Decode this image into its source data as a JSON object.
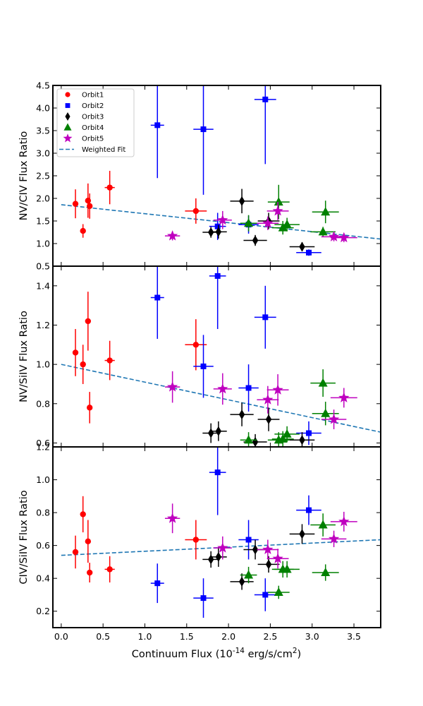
{
  "chart_data": {
    "type": "scatter",
    "xlabel": "Continuum Flux (10",
    "xlabel_exp": "-14",
    "xlabel_units": " erg/s/cm",
    "xlabel_units_exp": "2",
    "xlabel_close": ")",
    "xlim": [
      -0.1,
      3.82
    ],
    "xticks": [
      0.0,
      0.5,
      1.0,
      1.5,
      2.0,
      2.5,
      3.0,
      3.5
    ],
    "xtick_labels": [
      "0.0",
      "0.5",
      "1.0",
      "1.5",
      "2.0",
      "2.5",
      "3.0",
      "3.5"
    ],
    "legend": {
      "location": "top-left",
      "entries": [
        {
          "label": "Orbit1",
          "marker": "circle",
          "color": "#ff0000"
        },
        {
          "label": "Orbit2",
          "marker": "square",
          "color": "#0000ff"
        },
        {
          "label": "Orbit3",
          "marker": "diamond",
          "color": "#000000"
        },
        {
          "label": "Orbit4",
          "marker": "triangle",
          "color": "#008000"
        },
        {
          "label": "Orbit5",
          "marker": "star",
          "color": "#bf00bf"
        },
        {
          "label": "Weighted Fit",
          "marker": "dashed-line",
          "color": "#1f77b4"
        }
      ]
    },
    "colors": {
      "Orbit1": "#ff0000",
      "Orbit2": "#0000ff",
      "Orbit3": "#000000",
      "Orbit4": "#008000",
      "Orbit5": "#bf00bf",
      "fit": "#1f77b4"
    },
    "panels": [
      {
        "ylabel": "NV/CIV Flux Ratio",
        "ylim": [
          0.5,
          4.5
        ],
        "yticks": [
          0.5,
          1.0,
          1.5,
          2.0,
          2.5,
          3.0,
          3.5,
          4.0,
          4.5
        ],
        "ytick_labels": [
          "0.5",
          "1.0",
          "1.5",
          "2.0",
          "2.5",
          "3.0",
          "3.5",
          "4.0",
          "4.5"
        ],
        "fit": {
          "x": [
            0.0,
            3.82
          ],
          "y": [
            1.86,
            1.1
          ]
        },
        "series": [
          {
            "name": "Orbit1",
            "points": [
              {
                "x": 0.17,
                "y": 1.88,
                "xerr": 0.0,
                "yerr": 0.32
              },
              {
                "x": 0.26,
                "y": 1.28,
                "xerr": 0.03,
                "yerr": 0.15
              },
              {
                "x": 0.32,
                "y": 1.95,
                "xerr": 0.03,
                "yerr": 0.38
              },
              {
                "x": 0.34,
                "y": 1.83,
                "xerr": 0.03,
                "yerr": 0.28
              },
              {
                "x": 0.58,
                "y": 2.24,
                "xerr": 0.06,
                "yerr": 0.37
              },
              {
                "x": 1.61,
                "y": 1.72,
                "xerr": 0.13,
                "yerr": 0.28
              }
            ]
          },
          {
            "name": "Orbit2",
            "points": [
              {
                "x": 1.15,
                "y": 3.62,
                "xerr": 0.08,
                "yerr": 1.17
              },
              {
                "x": 1.7,
                "y": 3.53,
                "xerr": 0.12,
                "yerr": 1.45
              },
              {
                "x": 1.87,
                "y": 1.38,
                "xerr": 0.1,
                "yerr": 0.3
              },
              {
                "x": 2.24,
                "y": 1.42,
                "xerr": 0.12,
                "yerr": 0.2
              },
              {
                "x": 2.44,
                "y": 4.19,
                "xerr": 0.13,
                "yerr": 1.43
              },
              {
                "x": 2.96,
                "y": 0.8,
                "xerr": 0.15,
                "yerr": 0.07
              }
            ]
          },
          {
            "name": "Orbit3",
            "points": [
              {
                "x": 1.79,
                "y": 1.25,
                "xerr": 0.1,
                "yerr": 0.12
              },
              {
                "x": 1.88,
                "y": 1.26,
                "xerr": 0.1,
                "yerr": 0.15
              },
              {
                "x": 2.16,
                "y": 1.94,
                "xerr": 0.14,
                "yerr": 0.27
              },
              {
                "x": 2.32,
                "y": 1.07,
                "xerr": 0.14,
                "yerr": 0.12
              },
              {
                "x": 2.48,
                "y": 1.5,
                "xerr": 0.13,
                "yerr": 0.18
              },
              {
                "x": 2.88,
                "y": 0.93,
                "xerr": 0.15,
                "yerr": 0.1
              }
            ]
          },
          {
            "name": "Orbit4",
            "points": [
              {
                "x": 2.24,
                "y": 1.45,
                "xerr": 0.1,
                "yerr": 0.18
              },
              {
                "x": 2.6,
                "y": 1.92,
                "xerr": 0.13,
                "yerr": 0.38
              },
              {
                "x": 2.65,
                "y": 1.35,
                "xerr": 0.13,
                "yerr": 0.15
              },
              {
                "x": 2.7,
                "y": 1.42,
                "xerr": 0.15,
                "yerr": 0.15
              },
              {
                "x": 3.13,
                "y": 1.26,
                "xerr": 0.15,
                "yerr": 0.11
              },
              {
                "x": 3.16,
                "y": 1.7,
                "xerr": 0.16,
                "yerr": 0.25
              }
            ]
          },
          {
            "name": "Orbit5",
            "points": [
              {
                "x": 1.33,
                "y": 1.17,
                "xerr": 0.09,
                "yerr": 0.1
              },
              {
                "x": 1.93,
                "y": 1.52,
                "xerr": 0.11,
                "yerr": 0.2
              },
              {
                "x": 2.47,
                "y": 1.45,
                "xerr": 0.13,
                "yerr": 0.15
              },
              {
                "x": 2.59,
                "y": 1.72,
                "xerr": 0.13,
                "yerr": 0.2
              },
              {
                "x": 3.26,
                "y": 1.15,
                "xerr": 0.15,
                "yerr": 0.1
              },
              {
                "x": 3.38,
                "y": 1.13,
                "xerr": 0.16,
                "yerr": 0.1
              }
            ]
          }
        ]
      },
      {
        "ylabel": "NV/SiIV Flux Ratio",
        "ylim": [
          0.58,
          1.5
        ],
        "yticks": [
          0.6,
          0.8,
          1.0,
          1.2,
          1.4
        ],
        "ytick_labels": [
          "0.6",
          "0.8",
          "1.0",
          "1.2",
          "1.4"
        ],
        "fit": {
          "x": [
            0.0,
            3.82
          ],
          "y": [
            1.0,
            0.655
          ]
        },
        "series": [
          {
            "name": "Orbit1",
            "points": [
              {
                "x": 0.17,
                "y": 1.06,
                "xerr": 0.0,
                "yerr": 0.12
              },
              {
                "x": 0.26,
                "y": 1.0,
                "xerr": 0.03,
                "yerr": 0.1
              },
              {
                "x": 0.32,
                "y": 1.22,
                "xerr": 0.03,
                "yerr": 0.15
              },
              {
                "x": 0.34,
                "y": 0.78,
                "xerr": 0.03,
                "yerr": 0.08
              },
              {
                "x": 0.58,
                "y": 1.02,
                "xerr": 0.06,
                "yerr": 0.1
              },
              {
                "x": 1.61,
                "y": 1.1,
                "xerr": 0.13,
                "yerr": 0.13
              }
            ]
          },
          {
            "name": "Orbit2",
            "points": [
              {
                "x": 1.15,
                "y": 1.34,
                "xerr": 0.08,
                "yerr": 0.21
              },
              {
                "x": 1.7,
                "y": 0.99,
                "xerr": 0.12,
                "yerr": 0.16
              },
              {
                "x": 1.87,
                "y": 1.45,
                "xerr": 0.1,
                "yerr": 0.27
              },
              {
                "x": 2.24,
                "y": 0.88,
                "xerr": 0.12,
                "yerr": 0.12
              },
              {
                "x": 2.44,
                "y": 1.24,
                "xerr": 0.13,
                "yerr": 0.16
              },
              {
                "x": 2.96,
                "y": 0.65,
                "xerr": 0.15,
                "yerr": 0.06
              }
            ]
          },
          {
            "name": "Orbit3",
            "points": [
              {
                "x": 1.79,
                "y": 0.65,
                "xerr": 0.1,
                "yerr": 0.05
              },
              {
                "x": 1.88,
                "y": 0.66,
                "xerr": 0.1,
                "yerr": 0.05
              },
              {
                "x": 2.16,
                "y": 0.745,
                "xerr": 0.14,
                "yerr": 0.06
              },
              {
                "x": 2.32,
                "y": 0.605,
                "xerr": 0.14,
                "yerr": 0.04
              },
              {
                "x": 2.48,
                "y": 0.72,
                "xerr": 0.13,
                "yerr": 0.06
              },
              {
                "x": 2.88,
                "y": 0.615,
                "xerr": 0.15,
                "yerr": 0.04
              }
            ]
          },
          {
            "name": "Orbit4",
            "points": [
              {
                "x": 2.24,
                "y": 0.615,
                "xerr": 0.1,
                "yerr": 0.04
              },
              {
                "x": 2.6,
                "y": 0.615,
                "xerr": 0.13,
                "yerr": 0.04
              },
              {
                "x": 2.65,
                "y": 0.62,
                "xerr": 0.13,
                "yerr": 0.04
              },
              {
                "x": 2.7,
                "y": 0.645,
                "xerr": 0.15,
                "yerr": 0.04
              },
              {
                "x": 3.13,
                "y": 0.905,
                "xerr": 0.15,
                "yerr": 0.07
              },
              {
                "x": 3.16,
                "y": 0.75,
                "xerr": 0.16,
                "yerr": 0.06
              }
            ]
          },
          {
            "name": "Orbit5",
            "points": [
              {
                "x": 1.33,
                "y": 0.885,
                "xerr": 0.09,
                "yerr": 0.08
              },
              {
                "x": 1.93,
                "y": 0.875,
                "xerr": 0.11,
                "yerr": 0.08
              },
              {
                "x": 2.47,
                "y": 0.82,
                "xerr": 0.13,
                "yerr": 0.07
              },
              {
                "x": 2.59,
                "y": 0.87,
                "xerr": 0.13,
                "yerr": 0.08
              },
              {
                "x": 3.26,
                "y": 0.72,
                "xerr": 0.15,
                "yerr": 0.05
              },
              {
                "x": 3.38,
                "y": 0.83,
                "xerr": 0.16,
                "yerr": 0.05
              }
            ]
          }
        ]
      },
      {
        "ylabel": "CIV/SiIV Flux Ratio",
        "ylim": [
          0.1,
          1.2
        ],
        "yticks": [
          0.2,
          0.4,
          0.6,
          0.8,
          1.0,
          1.2
        ],
        "ytick_labels": [
          "0.2",
          "0.4",
          "0.6",
          "0.8",
          "1.0",
          "1.2"
        ],
        "fit": {
          "x": [
            0.0,
            3.82
          ],
          "y": [
            0.54,
            0.635
          ]
        },
        "series": [
          {
            "name": "Orbit1",
            "points": [
              {
                "x": 0.17,
                "y": 0.56,
                "xerr": 0.0,
                "yerr": 0.1
              },
              {
                "x": 0.26,
                "y": 0.79,
                "xerr": 0.03,
                "yerr": 0.11
              },
              {
                "x": 0.32,
                "y": 0.625,
                "xerr": 0.03,
                "yerr": 0.13
              },
              {
                "x": 0.34,
                "y": 0.435,
                "xerr": 0.03,
                "yerr": 0.06
              },
              {
                "x": 0.58,
                "y": 0.455,
                "xerr": 0.06,
                "yerr": 0.08
              },
              {
                "x": 1.61,
                "y": 0.635,
                "xerr": 0.13,
                "yerr": 0.12
              }
            ]
          },
          {
            "name": "Orbit2",
            "points": [
              {
                "x": 1.15,
                "y": 0.37,
                "xerr": 0.08,
                "yerr": 0.12
              },
              {
                "x": 1.7,
                "y": 0.28,
                "xerr": 0.12,
                "yerr": 0.12
              },
              {
                "x": 1.87,
                "y": 1.045,
                "xerr": 0.1,
                "yerr": 0.26
              },
              {
                "x": 2.24,
                "y": 0.635,
                "xerr": 0.12,
                "yerr": 0.12
              },
              {
                "x": 2.44,
                "y": 0.3,
                "xerr": 0.13,
                "yerr": 0.1
              },
              {
                "x": 2.96,
                "y": 0.815,
                "xerr": 0.15,
                "yerr": 0.09
              }
            ]
          },
          {
            "name": "Orbit3",
            "points": [
              {
                "x": 1.79,
                "y": 0.515,
                "xerr": 0.1,
                "yerr": 0.05
              },
              {
                "x": 1.88,
                "y": 0.53,
                "xerr": 0.1,
                "yerr": 0.06
              },
              {
                "x": 2.16,
                "y": 0.38,
                "xerr": 0.14,
                "yerr": 0.05
              },
              {
                "x": 2.32,
                "y": 0.575,
                "xerr": 0.14,
                "yerr": 0.06
              },
              {
                "x": 2.48,
                "y": 0.485,
                "xerr": 0.13,
                "yerr": 0.05
              },
              {
                "x": 2.88,
                "y": 0.67,
                "xerr": 0.15,
                "yerr": 0.06
              }
            ]
          },
          {
            "name": "Orbit4",
            "points": [
              {
                "x": 2.24,
                "y": 0.42,
                "xerr": 0.1,
                "yerr": 0.05
              },
              {
                "x": 2.6,
                "y": 0.315,
                "xerr": 0.13,
                "yerr": 0.04
              },
              {
                "x": 2.65,
                "y": 0.455,
                "xerr": 0.13,
                "yerr": 0.05
              },
              {
                "x": 2.7,
                "y": 0.455,
                "xerr": 0.15,
                "yerr": 0.05
              },
              {
                "x": 3.13,
                "y": 0.725,
                "xerr": 0.15,
                "yerr": 0.07
              },
              {
                "x": 3.16,
                "y": 0.435,
                "xerr": 0.16,
                "yerr": 0.05
              }
            ]
          },
          {
            "name": "Orbit5",
            "points": [
              {
                "x": 1.33,
                "y": 0.765,
                "xerr": 0.09,
                "yerr": 0.09
              },
              {
                "x": 1.93,
                "y": 0.585,
                "xerr": 0.11,
                "yerr": 0.07
              },
              {
                "x": 2.47,
                "y": 0.575,
                "xerr": 0.13,
                "yerr": 0.06
              },
              {
                "x": 2.59,
                "y": 0.52,
                "xerr": 0.13,
                "yerr": 0.06
              },
              {
                "x": 3.26,
                "y": 0.64,
                "xerr": 0.15,
                "yerr": 0.05
              },
              {
                "x": 3.38,
                "y": 0.745,
                "xerr": 0.16,
                "yerr": 0.06
              }
            ]
          }
        ]
      }
    ]
  }
}
